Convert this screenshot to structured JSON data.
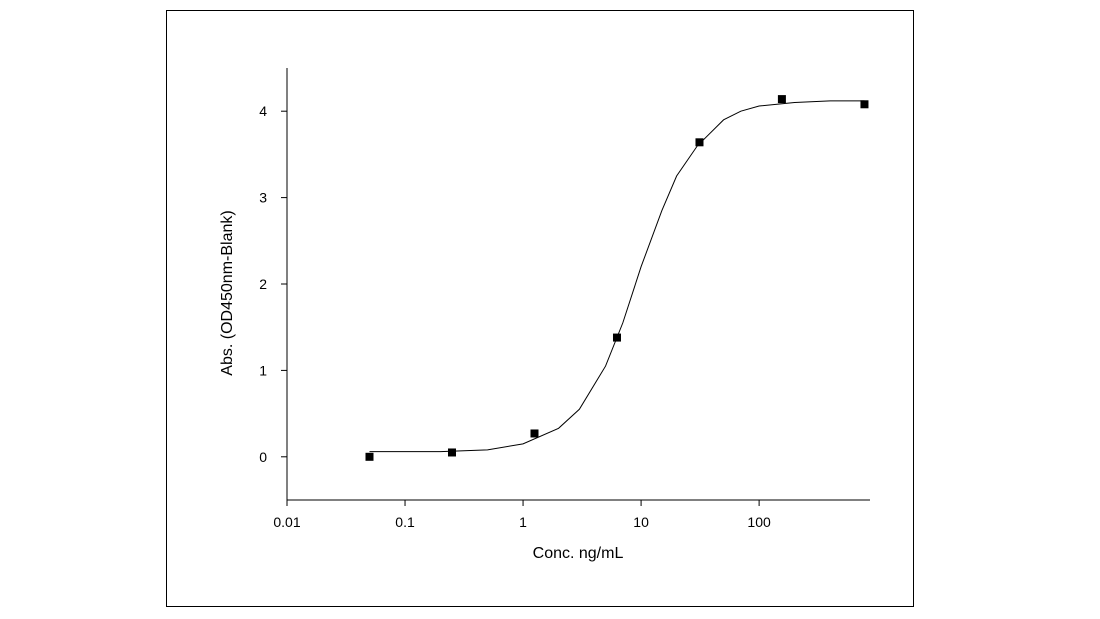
{
  "chart_data": {
    "type": "scatter",
    "x_label": "Conc. ng/mL",
    "y_label": "Abs. (OD450nm-Blank)",
    "xscale": "log",
    "xlim": [
      0.01,
      870
    ],
    "ylim": [
      -0.5,
      4.5
    ],
    "xticks": [
      0.01,
      0.1,
      1,
      10,
      100
    ],
    "yticks": [
      0,
      1,
      2,
      3,
      4
    ],
    "grid": false,
    "series": [
      {
        "kind": "markers",
        "color": "#000000",
        "x": [
          0.05,
          0.25,
          1.25,
          6.25,
          31.25,
          156,
          781
        ],
        "values": [
          0.0,
          0.05,
          0.27,
          1.38,
          3.64,
          4.14,
          4.08
        ]
      },
      {
        "kind": "line",
        "color": "#000000",
        "x": [
          0.05,
          0.1,
          0.2,
          0.5,
          1,
          2,
          3,
          5,
          7,
          10,
          15,
          20,
          30,
          50,
          70,
          100,
          200,
          400,
          781
        ],
        "values": [
          0.06,
          0.06,
          0.06,
          0.08,
          0.15,
          0.33,
          0.55,
          1.05,
          1.55,
          2.2,
          2.85,
          3.25,
          3.6,
          3.9,
          4.0,
          4.06,
          4.1,
          4.12,
          4.12
        ]
      }
    ]
  }
}
